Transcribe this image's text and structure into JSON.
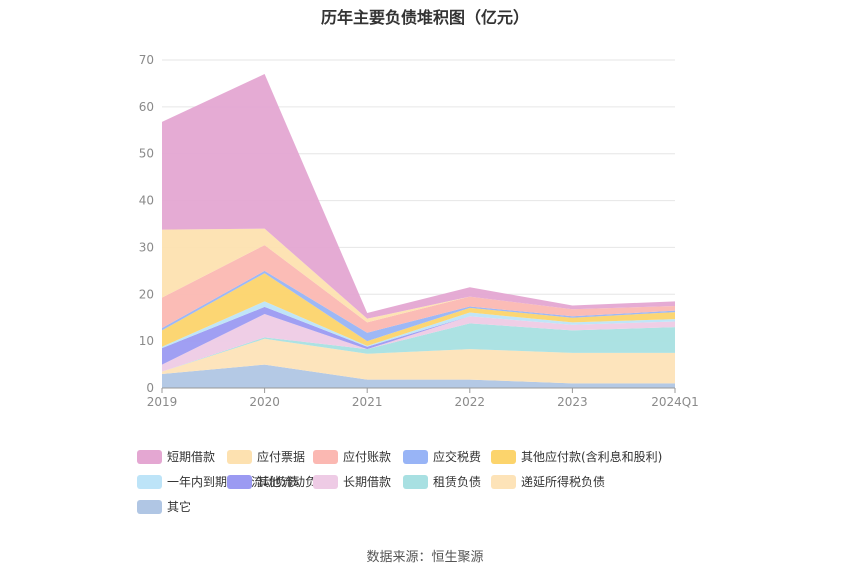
{
  "title": "历年主要负债堆积图（亿元）",
  "source": "数据来源：恒生聚源",
  "colors": {
    "短期借款": "#e4a7d2",
    "应付票据": "#fde1b0",
    "应付账款": "#fbb8b2",
    "应交税费": "#98b4f6",
    "其他应付款(含利息和股利)": "#fcd46c",
    "一年内到期的非流动负债": "#bde4f8",
    "其他流动负债": "#9b9af2",
    "长期借款": "#eecbe5",
    "租赁负债": "#a8e0e2",
    "递延所得税负债": "#fde3b8",
    "其它": "#b0c6e4"
  },
  "chart_data": {
    "type": "area",
    "stacked": true,
    "title": "历年主要负债堆积图（亿元）",
    "categories": [
      "2019",
      "2020",
      "2021",
      "2022",
      "2023",
      "2024Q1"
    ],
    "ylim": [
      0,
      70
    ],
    "yticks": [
      0,
      10,
      20,
      30,
      40,
      50,
      60,
      70
    ],
    "grid": true,
    "legend_position": "bottom",
    "series": [
      {
        "name": "其它",
        "values": [
          3,
          5,
          1.8,
          1.8,
          1,
          1
        ]
      },
      {
        "name": "递延所得税负债",
        "values": [
          0.5,
          5.5,
          5.5,
          6.5,
          6.5,
          6.5
        ]
      },
      {
        "name": "租赁负债",
        "values": [
          0,
          0.3,
          1,
          5.5,
          4.8,
          5.5
        ]
      },
      {
        "name": "长期借款",
        "values": [
          1.5,
          5,
          0,
          1.5,
          1.2,
          1.2
        ]
      },
      {
        "name": "其他流动负债",
        "values": [
          3.5,
          1.5,
          0.5,
          0,
          0,
          0
        ]
      },
      {
        "name": "一年内到期的非流动负债",
        "values": [
          0.3,
          1.2,
          0.2,
          0.8,
          0.5,
          0.5
        ]
      },
      {
        "name": "其他应付款(含利息和股利)",
        "values": [
          3.5,
          6,
          1,
          1,
          1,
          1.5
        ]
      },
      {
        "name": "应交税费",
        "values": [
          0.5,
          0.5,
          1.8,
          0.3,
          0.3,
          0.3
        ]
      },
      {
        "name": "应付账款",
        "values": [
          6.5,
          5.5,
          2.2,
          2.1,
          1.5,
          1
        ]
      },
      {
        "name": "应付票据",
        "values": [
          14.5,
          3.5,
          0.8,
          0,
          0,
          0
        ]
      },
      {
        "name": "短期借款",
        "values": [
          23,
          33,
          1.2,
          2,
          0.8,
          1
        ]
      }
    ]
  },
  "legend": [
    "短期借款",
    "应付票据",
    "应付账款",
    "应交税费",
    "其他应付款(含利息和股利)",
    "一年内到期的非流动负债",
    "其他流动负债",
    "长期借款",
    "租赁负债",
    "递延所得税负债",
    "其它"
  ]
}
